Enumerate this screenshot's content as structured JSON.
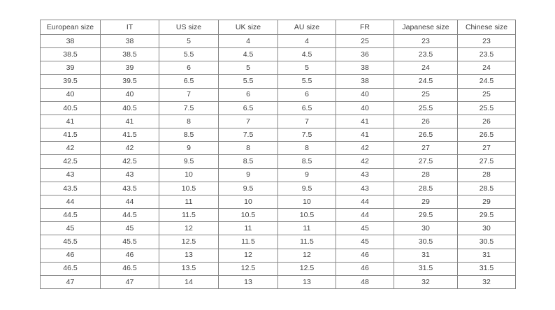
{
  "table": {
    "headers": [
      "European size",
      "IT",
      "US size",
      "UK size",
      "AU size",
      "FR",
      "Japanese size",
      "Chinese size"
    ],
    "rows": [
      [
        "38",
        "38",
        "5",
        "4",
        "4",
        "25",
        "23",
        "23"
      ],
      [
        "38.5",
        "38.5",
        "5.5",
        "4.5",
        "4.5",
        "36",
        "23.5",
        "23.5"
      ],
      [
        "39",
        "39",
        "6",
        "5",
        "5",
        "38",
        "24",
        "24"
      ],
      [
        "39.5",
        "39.5",
        "6.5",
        "5.5",
        "5.5",
        "38",
        "24.5",
        "24.5"
      ],
      [
        "40",
        "40",
        "7",
        "6",
        "6",
        "40",
        "25",
        "25"
      ],
      [
        "40.5",
        "40.5",
        "7.5",
        "6.5",
        "6.5",
        "40",
        "25.5",
        "25.5"
      ],
      [
        "41",
        "41",
        "8",
        "7",
        "7",
        "41",
        "26",
        "26"
      ],
      [
        "41.5",
        "41.5",
        "8.5",
        "7.5",
        "7.5",
        "41",
        "26.5",
        "26.5"
      ],
      [
        "42",
        "42",
        "9",
        "8",
        "8",
        "42",
        "27",
        "27"
      ],
      [
        "42.5",
        "42.5",
        "9.5",
        "8.5",
        "8.5",
        "42",
        "27.5",
        "27.5"
      ],
      [
        "43",
        "43",
        "10",
        "9",
        "9",
        "43",
        "28",
        "28"
      ],
      [
        "43.5",
        "43.5",
        "10.5",
        "9.5",
        "9.5",
        "43",
        "28.5",
        "28.5"
      ],
      [
        "44",
        "44",
        "11",
        "10",
        "10",
        "44",
        "29",
        "29"
      ],
      [
        "44.5",
        "44.5",
        "11.5",
        "10.5",
        "10.5",
        "44",
        "29.5",
        "29.5"
      ],
      [
        "45",
        "45",
        "12",
        "11",
        "11",
        "45",
        "30",
        "30"
      ],
      [
        "45.5",
        "45.5",
        "12.5",
        "11.5",
        "11.5",
        "45",
        "30.5",
        "30.5"
      ],
      [
        "46",
        "46",
        "13",
        "12",
        "12",
        "46",
        "31",
        "31"
      ],
      [
        "46.5",
        "46.5",
        "13.5",
        "12.5",
        "12.5",
        "46",
        "31.5",
        "31.5"
      ],
      [
        "47",
        "47",
        "14",
        "13",
        "13",
        "48",
        "32",
        "32"
      ]
    ],
    "colors": {
      "border": "#858585",
      "text": "#3f3f3f",
      "background": "#ffffff"
    }
  }
}
